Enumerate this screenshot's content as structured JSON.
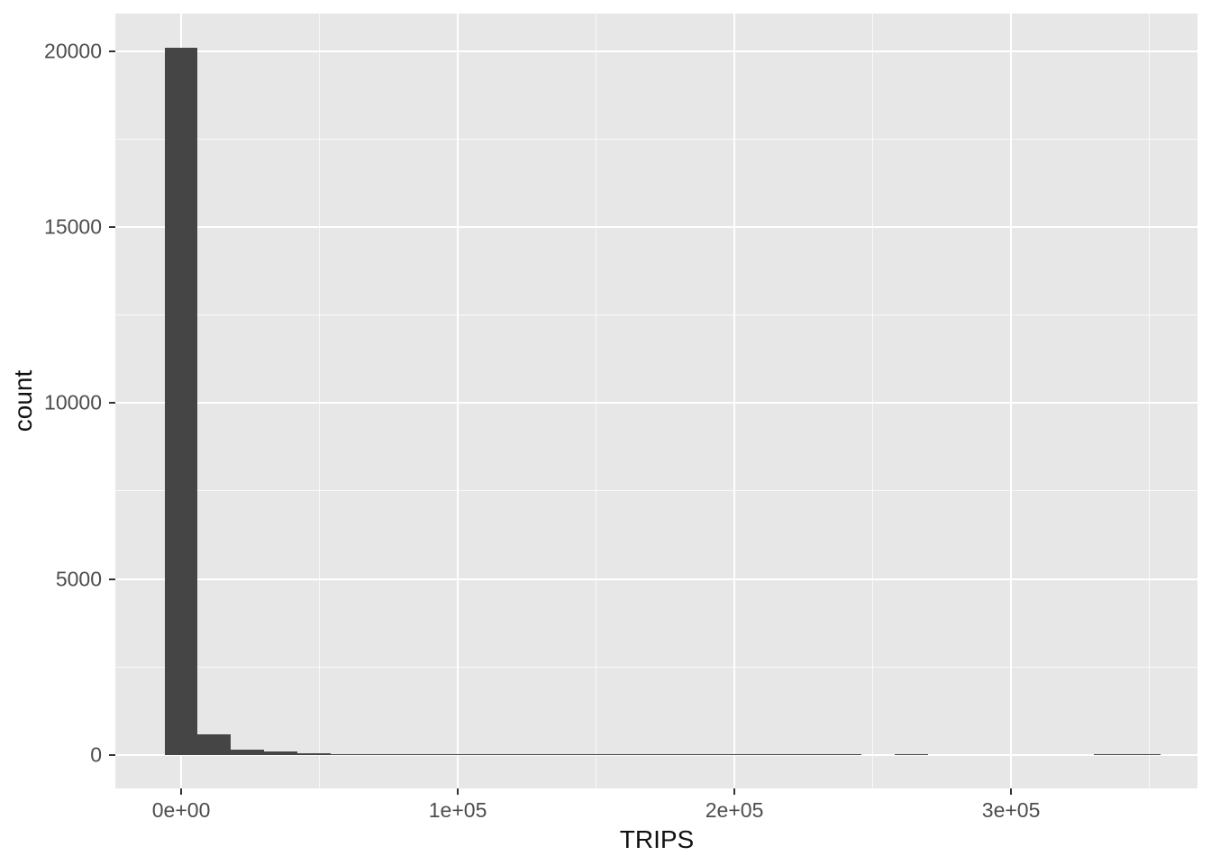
{
  "figure": {
    "background": "#ffffff"
  },
  "chart_data": {
    "type": "bar",
    "subtype": "histogram",
    "title": "",
    "xlabel": "TRIPS",
    "ylabel": "count",
    "legend_position": "none",
    "grid": true,
    "panel_background": "#E7E7E7",
    "bar_color": "#454545",
    "gridline_color": "#FFFFFF",
    "tick_mark_color": "#333333",
    "tick_label_color": "#4D4D4D",
    "axis_title_color": "#111111",
    "xlim": [
      -23800,
      367400
    ],
    "ylim": [
      -950,
      21070
    ],
    "binwidth": 12000,
    "x_ticks": [
      {
        "value": 0,
        "label": "0e+00"
      },
      {
        "value": 100000,
        "label": "1e+05"
      },
      {
        "value": 200000,
        "label": "2e+05"
      },
      {
        "value": 300000,
        "label": "3e+05"
      }
    ],
    "y_ticks": [
      {
        "value": 0,
        "label": "0"
      },
      {
        "value": 5000,
        "label": "5000"
      },
      {
        "value": 10000,
        "label": "10000"
      },
      {
        "value": 15000,
        "label": "15000"
      },
      {
        "value": 20000,
        "label": "20000"
      }
    ],
    "x_minor_ticks": [
      50000,
      150000,
      250000,
      350000
    ],
    "y_minor_ticks": [
      2500,
      7500,
      12500,
      17500
    ],
    "bins": [
      {
        "center": 0,
        "count": 20100
      },
      {
        "center": 12000,
        "count": 590
      },
      {
        "center": 24000,
        "count": 150
      },
      {
        "center": 36000,
        "count": 90
      },
      {
        "center": 48000,
        "count": 45
      },
      {
        "center": 60000,
        "count": 32
      },
      {
        "center": 72000,
        "count": 24
      },
      {
        "center": 84000,
        "count": 14
      },
      {
        "center": 96000,
        "count": 9
      },
      {
        "center": 108000,
        "count": 6
      },
      {
        "center": 120000,
        "count": 5
      },
      {
        "center": 132000,
        "count": 4
      },
      {
        "center": 144000,
        "count": 3
      },
      {
        "center": 156000,
        "count": 3
      },
      {
        "center": 168000,
        "count": 2
      },
      {
        "center": 180000,
        "count": 2
      },
      {
        "center": 192000,
        "count": 2
      },
      {
        "center": 204000,
        "count": 1
      },
      {
        "center": 216000,
        "count": 1
      },
      {
        "center": 228000,
        "count": 1
      },
      {
        "center": 240000,
        "count": 1
      },
      {
        "center": 252000,
        "count": 0
      },
      {
        "center": 264000,
        "count": 1
      },
      {
        "center": 276000,
        "count": 0
      },
      {
        "center": 288000,
        "count": 0
      },
      {
        "center": 300000,
        "count": 0
      },
      {
        "center": 312000,
        "count": 0
      },
      {
        "center": 324000,
        "count": 0
      },
      {
        "center": 336000,
        "count": 1
      },
      {
        "center": 348000,
        "count": 1
      }
    ]
  }
}
